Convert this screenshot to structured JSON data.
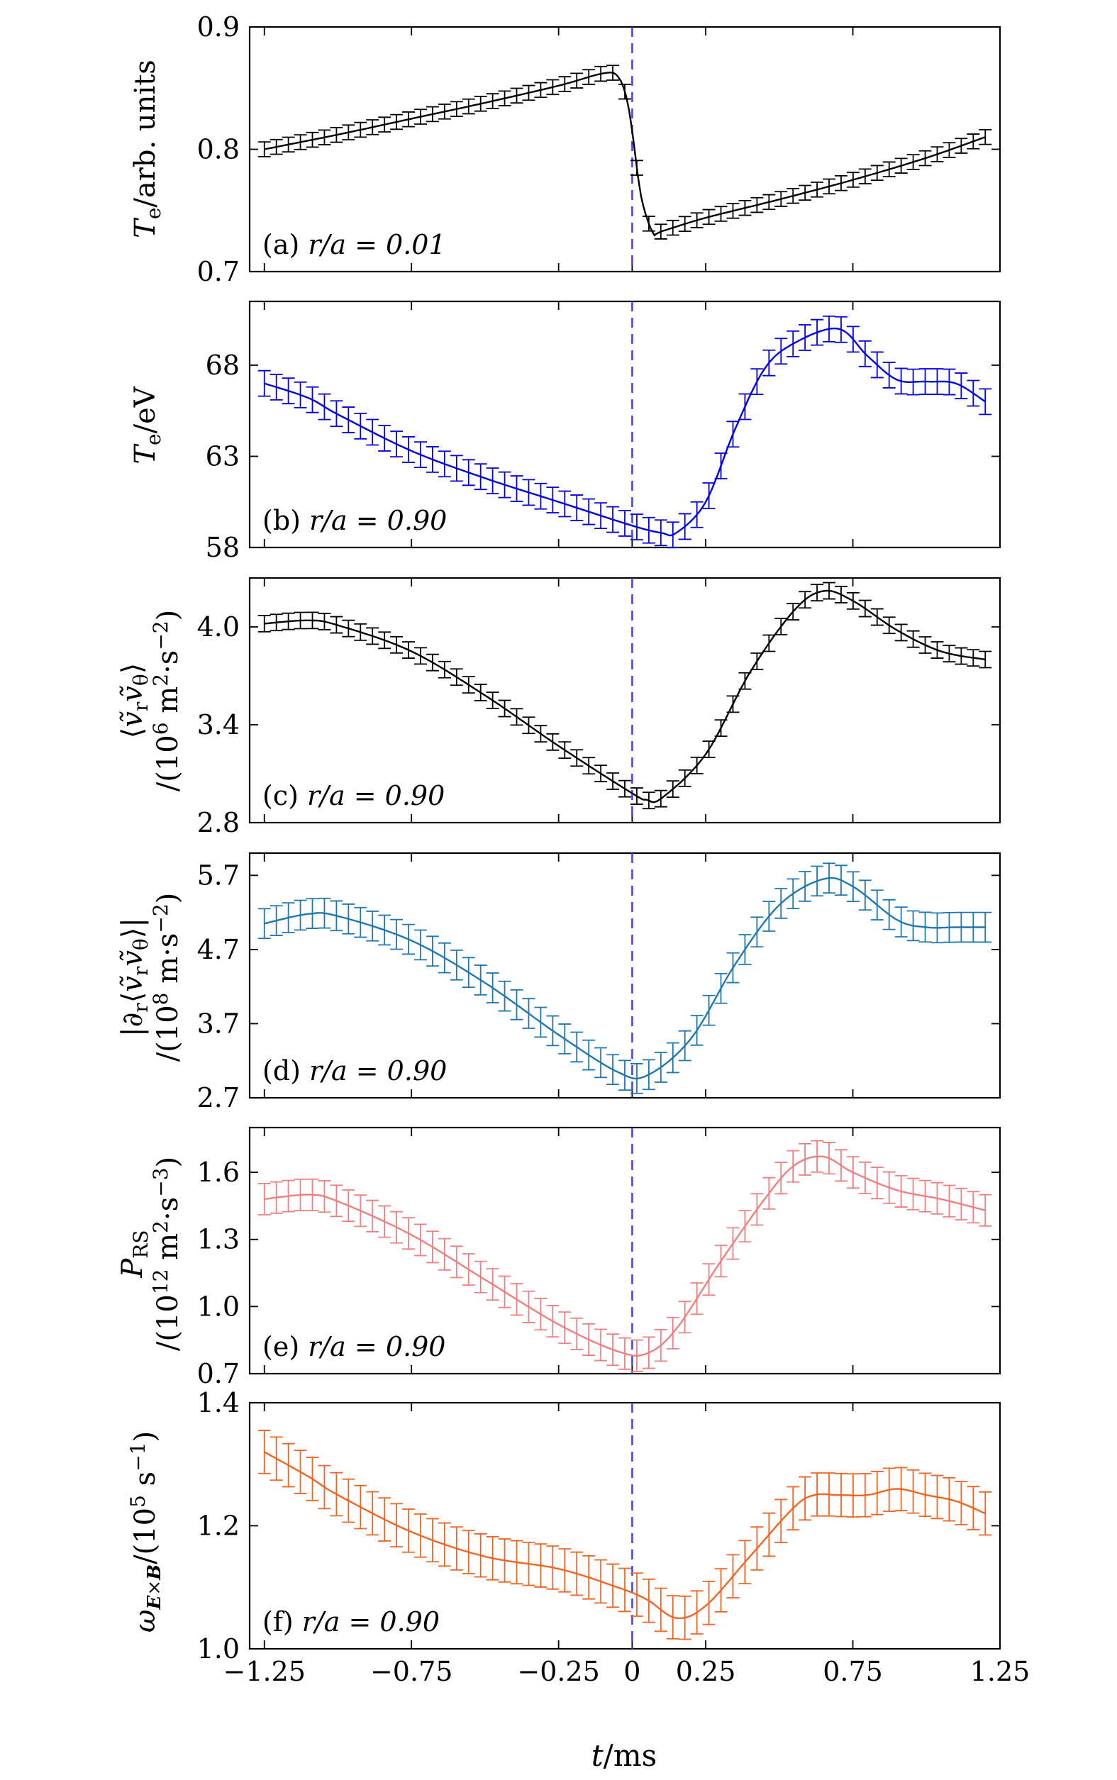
{
  "chart_data": {
    "type": "line",
    "xlabel": "t/ms",
    "xlim": [
      -1.3,
      1.25
    ],
    "xticks": [
      -1.25,
      -0.75,
      -0.25,
      0,
      0.25,
      0.75,
      1.25
    ],
    "xtick_labels": [
      "−1.25",
      "−0.75",
      "−0.25",
      "0",
      "0.25",
      "0.75",
      "1.25"
    ],
    "marker_line_x": 0,
    "panels": [
      {
        "id": "a",
        "label": "(a)",
        "annotation": "r/a = 0.01",
        "ylabel": "T_e/arb. units",
        "color": "#000000",
        "ylim": [
          0.7,
          0.9
        ],
        "yticks": [
          0.7,
          0.8,
          0.9
        ],
        "ytick_labels": [
          "0.7",
          "0.8",
          "0.9"
        ],
        "x": [
          -1.25,
          -1.0,
          -0.75,
          -0.5,
          -0.25,
          -0.1,
          -0.05,
          -0.02,
          0.0,
          0.03,
          0.07,
          0.1,
          0.25,
          0.5,
          0.75,
          1.0,
          1.2
        ],
        "y": [
          0.8,
          0.812,
          0.825,
          0.838,
          0.852,
          0.862,
          0.86,
          0.843,
          0.815,
          0.762,
          0.732,
          0.733,
          0.744,
          0.759,
          0.775,
          0.793,
          0.81
        ],
        "err": 0.006
      },
      {
        "id": "b",
        "label": "(b)",
        "annotation": "r/a = 0.90",
        "ylabel": "T_e/eV",
        "color": "#0000e6",
        "ylim": [
          58,
          71.5
        ],
        "yticks": [
          58,
          63,
          68
        ],
        "ytick_labels": [
          "58",
          "63",
          "68"
        ],
        "x": [
          -1.25,
          -1.1,
          -1.0,
          -0.75,
          -0.5,
          -0.25,
          0.0,
          0.1,
          0.15,
          0.25,
          0.35,
          0.45,
          0.55,
          0.7,
          0.8,
          0.9,
          1.0,
          1.1,
          1.2
        ],
        "y": [
          67.0,
          66.2,
          65.3,
          63.3,
          61.8,
          60.5,
          59.2,
          58.8,
          58.8,
          60.5,
          64.5,
          67.8,
          69.2,
          70.0,
          68.5,
          67.2,
          67.1,
          67.0,
          66.0
        ],
        "err": 0.7
      },
      {
        "id": "c",
        "label": "(c)",
        "annotation": "r/a = 0.90",
        "ylabel": "⟨ṽrṽθ⟩ /(10⁶ m²·s⁻²)",
        "color": "#000000",
        "ylim": [
          2.8,
          4.3
        ],
        "yticks": [
          2.8,
          3.4,
          4.0
        ],
        "ytick_labels": [
          "2.8",
          "3.4",
          "4.0"
        ],
        "x": [
          -1.25,
          -1.1,
          -1.0,
          -0.75,
          -0.5,
          -0.25,
          0.0,
          0.05,
          0.1,
          0.25,
          0.4,
          0.55,
          0.65,
          0.75,
          0.9,
          1.05,
          1.2
        ],
        "y": [
          4.02,
          4.04,
          4.01,
          3.85,
          3.58,
          3.27,
          2.98,
          2.94,
          2.95,
          3.22,
          3.72,
          4.1,
          4.22,
          4.16,
          3.98,
          3.85,
          3.8
        ],
        "err": 0.05
      },
      {
        "id": "d",
        "label": "(d)",
        "annotation": "r/a = 0.90",
        "ylabel": "|∂r⟨ṽrṽθ⟩| /(10⁸ m·s⁻²)",
        "color": "#1f77b4",
        "ylim": [
          2.7,
          6.0
        ],
        "yticks": [
          2.7,
          3.7,
          4.7,
          5.7
        ],
        "ytick_labels": [
          "2.7",
          "3.7",
          "4.7",
          "5.7"
        ],
        "x": [
          -1.25,
          -1.1,
          -1.0,
          -0.75,
          -0.5,
          -0.25,
          -0.05,
          0.05,
          0.2,
          0.35,
          0.5,
          0.65,
          0.75,
          0.9,
          1.0,
          1.1,
          1.2
        ],
        "y": [
          5.05,
          5.18,
          5.15,
          4.82,
          4.25,
          3.55,
          3.05,
          3.0,
          3.5,
          4.5,
          5.3,
          5.65,
          5.55,
          5.1,
          5.0,
          5.0,
          5.0
        ],
        "err": 0.2
      },
      {
        "id": "e",
        "label": "(e)",
        "annotation": "r/a = 0.90",
        "ylabel": "P_RS /(10¹² m²·s⁻³)",
        "color": "#f08080",
        "ylim": [
          0.7,
          1.8
        ],
        "yticks": [
          0.7,
          1.0,
          1.3,
          1.6
        ],
        "ytick_labels": [
          "0.7",
          "1.0",
          "1.3",
          "1.6"
        ],
        "x": [
          -1.25,
          -1.1,
          -1.0,
          -0.75,
          -0.5,
          -0.25,
          -0.05,
          0.05,
          0.15,
          0.3,
          0.45,
          0.55,
          0.65,
          0.75,
          0.9,
          1.05,
          1.2
        ],
        "y": [
          1.48,
          1.5,
          1.47,
          1.32,
          1.12,
          0.92,
          0.8,
          0.79,
          0.9,
          1.2,
          1.48,
          1.63,
          1.67,
          1.6,
          1.52,
          1.48,
          1.43
        ],
        "err": 0.07
      },
      {
        "id": "f",
        "label": "(f)",
        "annotation": "r/a = 0.90",
        "ylabel": "ω_E×B /(10⁵ s⁻¹)",
        "color": "#f26522",
        "ylim": [
          1.0,
          1.4
        ],
        "yticks": [
          1.0,
          1.2,
          1.4
        ],
        "ytick_labels": [
          "1.0",
          "1.2",
          "1.4"
        ],
        "x": [
          -1.25,
          -1.1,
          -1.0,
          -0.75,
          -0.5,
          -0.25,
          -0.05,
          0.05,
          0.15,
          0.25,
          0.4,
          0.55,
          0.62,
          0.7,
          0.8,
          0.9,
          1.0,
          1.1,
          1.2
        ],
        "y": [
          1.32,
          1.28,
          1.25,
          1.19,
          1.15,
          1.13,
          1.1,
          1.08,
          1.05,
          1.07,
          1.15,
          1.23,
          1.25,
          1.25,
          1.25,
          1.26,
          1.25,
          1.24,
          1.22
        ],
        "err": 0.035
      }
    ]
  }
}
